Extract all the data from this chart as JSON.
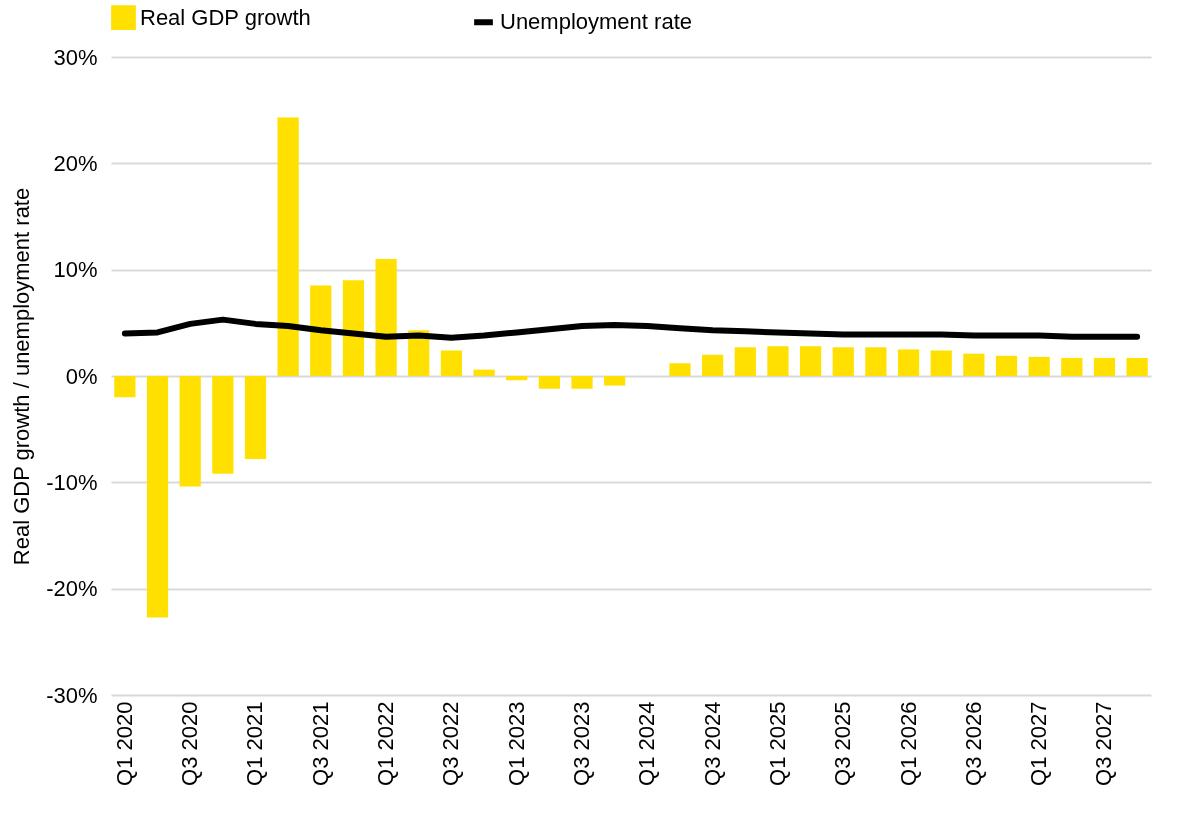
{
  "chart_data": {
    "type": "bar",
    "ylabel": "Real GDP growth / unemployment rate",
    "categories": [
      "Q1 2020",
      null,
      "Q3 2020",
      null,
      "Q1 2021",
      null,
      "Q3 2021",
      null,
      "Q1 2022",
      null,
      "Q3 2022",
      null,
      "Q1 2023",
      null,
      "Q3 2023",
      null,
      "Q1 2024",
      null,
      "Q3 2024",
      null,
      "Q1 2025",
      null,
      "Q3 2025",
      null,
      "Q1 2026",
      null,
      "Q3 2026",
      null,
      "Q1 2027",
      null,
      "Q3 2027",
      null
    ],
    "series": [
      {
        "name": "Real GDP growth",
        "color": "#ffe000",
        "values": [
          -2.0,
          -22.7,
          -10.4,
          -9.2,
          -7.8,
          24.3,
          8.5,
          9.0,
          11.0,
          4.3,
          2.4,
          0.6,
          -0.4,
          -1.2,
          -1.2,
          -0.9,
          0,
          1.2,
          2.0,
          2.7,
          2.8,
          2.8,
          2.7,
          2.7,
          2.5,
          2.4,
          2.1,
          1.9,
          1.8,
          1.7,
          1.7,
          1.7
        ]
      },
      {
        "name": "Unemployment rate",
        "type": "line",
        "color": "#000000",
        "values": [
          4.0,
          4.1,
          4.9,
          5.3,
          4.9,
          4.7,
          4.3,
          4.0,
          3.7,
          3.8,
          3.6,
          3.8,
          4.1,
          4.4,
          4.7,
          4.8,
          4.7,
          4.5,
          4.3,
          4.2,
          4.1,
          4.0,
          3.9,
          3.9,
          3.9,
          3.9,
          3.8,
          3.8,
          3.8,
          3.7,
          3.7,
          3.7
        ]
      }
    ],
    "ylim": [
      -30,
      30
    ],
    "yticks": [
      {
        "value": -30,
        "label": "-30%"
      },
      {
        "value": -20,
        "label": "-20%"
      },
      {
        "value": -10,
        "label": "-10%"
      },
      {
        "value": 0,
        "label": "0%"
      },
      {
        "value": 10,
        "label": "10%"
      },
      {
        "value": 20,
        "label": "20%"
      },
      {
        "value": 30,
        "label": "30%"
      }
    ],
    "grid": "y",
    "legend": "top"
  }
}
